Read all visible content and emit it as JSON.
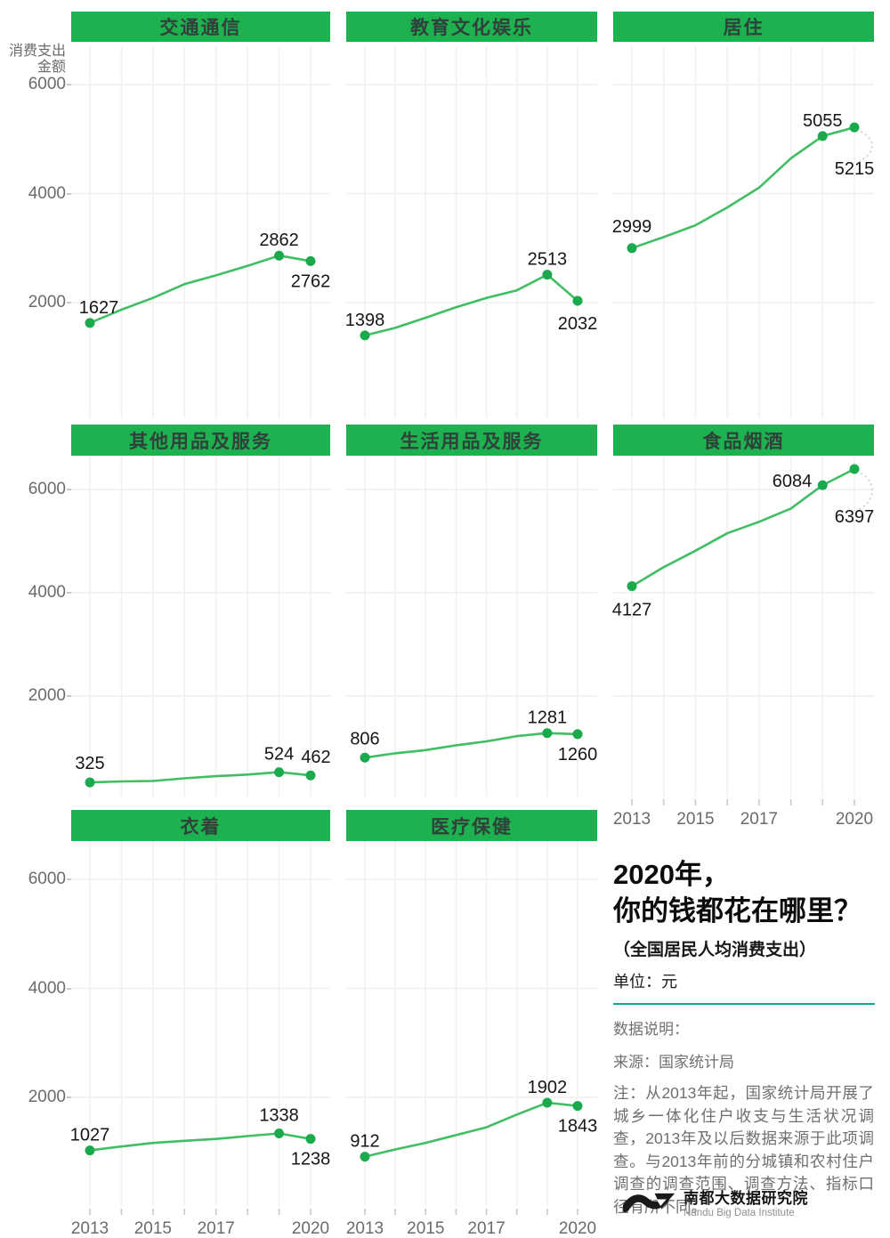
{
  "colors": {
    "header_bg": "#1db14f",
    "header_text": "#30403a",
    "line": "#41bd63",
    "point": "#1aa94c",
    "data_label": "#161616",
    "axis_text": "#6b6b6b",
    "grid": "#f0f1f1",
    "tick": "#c9c9c9",
    "leader": "#d4d4d4",
    "divider": "#17a68a",
    "note_text": "#6f6f6f"
  },
  "chart_data": {
    "type": "line",
    "small_multiples": true,
    "x": [
      2013,
      2014,
      2015,
      2016,
      2017,
      2018,
      2019,
      2020
    ],
    "x_tick_labels": [
      "2013",
      "2015",
      "2017",
      "2020"
    ],
    "x_tick_years": [
      2013,
      2015,
      2017,
      2020
    ],
    "ylim": [
      0,
      6700
    ],
    "y_ticks": [
      6000,
      4000,
      2000
    ],
    "y_axis_title_lines": [
      "消费支出",
      "金额"
    ],
    "unit": "元",
    "grid": "on",
    "legend": "none",
    "panels": [
      {
        "title": "交通通信",
        "values": [
          1627,
          1869,
          2087,
          2338,
          2499,
          2675,
          2862,
          2762
        ],
        "labels": [
          {
            "year": 2013,
            "value": 1627,
            "pos": "above",
            "dx": 10
          },
          {
            "year": 2019,
            "value": 2862,
            "pos": "above"
          },
          {
            "year": 2020,
            "value": 2762,
            "pos": "below"
          }
        ]
      },
      {
        "title": "教育文化娱乐",
        "values": [
          1398,
          1536,
          1723,
          1915,
          2086,
          2226,
          2513,
          2032
        ],
        "labels": [
          {
            "year": 2013,
            "value": 1398,
            "pos": "above"
          },
          {
            "year": 2019,
            "value": 2513,
            "pos": "above"
          },
          {
            "year": 2020,
            "value": 2032,
            "pos": "below",
            "dy": 32
          }
        ]
      },
      {
        "title": "居住",
        "values": [
          2999,
          3201,
          3419,
          3746,
          4107,
          4647,
          5055,
          5215
        ],
        "labels": [
          {
            "year": 2013,
            "value": 2999,
            "pos": "above",
            "dy": -18
          },
          {
            "year": 2019,
            "value": 5055,
            "pos": "above"
          },
          {
            "year": 2020,
            "value": 5215,
            "pos": "below-far",
            "dy": 53,
            "leader": true
          }
        ]
      },
      {
        "title": "其他用品及服务",
        "values": [
          325,
          344,
          353,
          406,
          447,
          477,
          524,
          462
        ],
        "labels": [
          {
            "year": 2013,
            "value": 325,
            "pos": "above",
            "dy": -15
          },
          {
            "year": 2019,
            "value": 524,
            "pos": "above",
            "dy": -14
          },
          {
            "year": 2020,
            "value": 462,
            "pos": "above",
            "dy": -14,
            "dx": 6
          }
        ]
      },
      {
        "title": "生活用品及服务",
        "values": [
          806,
          890,
          951,
          1044,
          1121,
          1223,
          1281,
          1260
        ],
        "labels": [
          {
            "year": 2013,
            "value": 806,
            "pos": "above",
            "dy": -15
          },
          {
            "year": 2019,
            "value": 1281,
            "pos": "above"
          },
          {
            "year": 2020,
            "value": 1260,
            "pos": "below"
          }
        ]
      },
      {
        "title": "食品烟酒",
        "values": [
          4127,
          4494,
          4814,
          5151,
          5374,
          5631,
          6084,
          6397
        ],
        "labels": [
          {
            "year": 2013,
            "value": 4127,
            "pos": "below",
            "dy": 33
          },
          {
            "year": 2019,
            "value": 6084,
            "pos": "left"
          },
          {
            "year": 2020,
            "value": 6397,
            "pos": "below-far",
            "dy": 60,
            "leader": true
          }
        ]
      },
      {
        "title": "衣着",
        "values": [
          1027,
          1099,
          1164,
          1203,
          1238,
          1289,
          1338,
          1238
        ],
        "labels": [
          {
            "year": 2013,
            "value": 1027,
            "pos": "above"
          },
          {
            "year": 2019,
            "value": 1338,
            "pos": "above",
            "dy": -14
          },
          {
            "year": 2020,
            "value": 1238,
            "pos": "below"
          }
        ]
      },
      {
        "title": "医疗保健",
        "values": [
          912,
          1045,
          1165,
          1307,
          1451,
          1685,
          1902,
          1843
        ],
        "labels": [
          {
            "year": 2013,
            "value": 912,
            "pos": "above"
          },
          {
            "year": 2019,
            "value": 1902,
            "pos": "above"
          },
          {
            "year": 2020,
            "value": 1843,
            "pos": "below"
          }
        ]
      }
    ]
  },
  "title_block": {
    "line1": "2020年，",
    "line2": "你的钱都花在哪里？",
    "subtitle": "（全国居民人均消费支出）",
    "unit_label": "单位：元"
  },
  "notes": {
    "heading": "数据说明：",
    "source": "来源：国家统计局",
    "body": "注：从2013年起，国家统计局开展了城乡一体化住户收支与生活状况调查，2013年及以后数据来源于此项调查。与2013年前的分城镇和农村住户调查的调查范围、调查方法、指标口径有所不同。"
  },
  "logo": {
    "name_cn": "南都大数据研究院",
    "name_en": "Nandu Big Data Institute"
  }
}
